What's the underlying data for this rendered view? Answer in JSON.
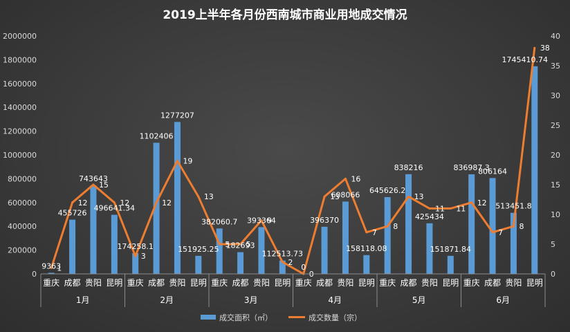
{
  "chart_data": {
    "type": "bar",
    "title": "2019上半年各月份西南城市商业用地成交情况",
    "categories": [
      "重庆",
      "成都",
      "贵阳",
      "昆明",
      "重庆",
      "成都",
      "贵阳",
      "昆明",
      "重庆",
      "成都",
      "贵阳",
      "昆明",
      "重庆",
      "成都",
      "贵阳",
      "昆明",
      "重庆",
      "成都",
      "贵阳",
      "昆明",
      "重庆",
      "成都",
      "贵阳",
      "昆明"
    ],
    "groups": [
      {
        "label": "1月",
        "size": 4
      },
      {
        "label": "2月",
        "size": 4
      },
      {
        "label": "3月",
        "size": 4
      },
      {
        "label": "4月",
        "size": 4
      },
      {
        "label": "5月",
        "size": 4
      },
      {
        "label": "6月",
        "size": 4
      }
    ],
    "series": [
      {
        "name": "成交面积（㎡）",
        "type": "bar",
        "axis": "left",
        "color": "#5b9bd5",
        "values": [
          9363,
          455726,
          743643,
          496641.34,
          174258.1,
          1102406,
          1277207,
          151925.25,
          382060.7,
          182693,
          393364,
          112513.73,
          0,
          396370,
          608066,
          158118.08,
          645626.2,
          838216,
          425434,
          151871.84,
          836987.3,
          806164,
          513451.8,
          1745410.74
        ],
        "labels": [
          "9363",
          "455726",
          "743643",
          "496641.34",
          "174258.1",
          "1102406",
          "1277207",
          "151925.25",
          "382060.7",
          "182693",
          "393364",
          "112513.73",
          "0",
          "396370",
          "608066",
          "158118.08",
          "645626.2",
          "838216",
          "425434",
          "151871.84",
          "836987.3",
          "806164",
          "513451.8",
          "1745410.74"
        ]
      },
      {
        "name": "成交数量（宗）",
        "type": "line",
        "axis": "right",
        "color": "#ed7d31",
        "values": [
          1,
          12,
          15,
          12,
          3,
          12,
          19,
          13,
          5,
          5,
          9,
          2,
          0,
          13,
          16,
          7,
          8,
          13,
          11,
          11,
          12,
          7,
          8,
          38
        ],
        "labels": [
          "1",
          "12",
          "15",
          "12",
          "3",
          "12",
          "19",
          "13",
          "5",
          "5",
          "9",
          "2",
          "0",
          "13",
          "16",
          "7",
          "8",
          "13",
          "11",
          "11",
          "12",
          "7",
          "8",
          "38"
        ]
      }
    ],
    "y_left": {
      "min": 0,
      "max": 2000000,
      "ticks": [
        "0",
        "200000",
        "400000",
        "600000",
        "800000",
        "1000000",
        "1200000",
        "1400000",
        "1600000",
        "1800000",
        "2000000"
      ]
    },
    "y_right": {
      "min": 0,
      "max": 40,
      "ticks": [
        "0",
        "5",
        "10",
        "15",
        "20",
        "25",
        "30",
        "35",
        "40"
      ]
    },
    "grid": false,
    "legend": "bottom"
  }
}
